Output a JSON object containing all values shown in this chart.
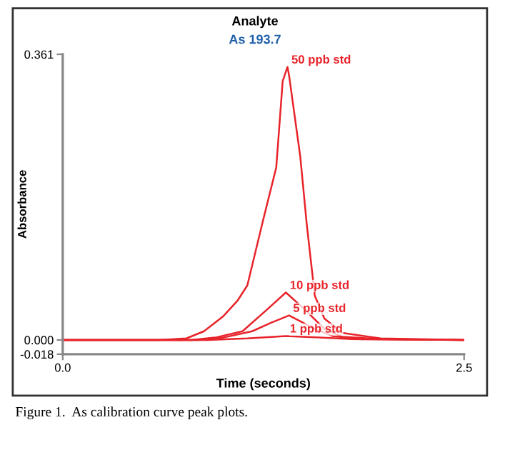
{
  "chart_data": {
    "type": "line",
    "title": "Analyte",
    "subtitle": "As 193.7",
    "xlabel": "Time (seconds)",
    "ylabel": "Absorbance",
    "xlim": [
      0,
      2.5
    ],
    "ylim": [
      -0.018,
      0.361
    ],
    "xticks": [
      {
        "value": 0,
        "label": "0.0"
      },
      2.5
    ],
    "yticks": [
      {
        "value": -0.018,
        "label": "-0.018"
      },
      {
        "value": 0,
        "label": "0.000"
      },
      0.361
    ],
    "grid": false,
    "legend": false,
    "marker": "none",
    "line_style": "solid",
    "annotations": [
      "Figure 1.  As calibration curve peak plots."
    ],
    "series": [
      {
        "name": "50 ppb std",
        "color": "#e8242b",
        "x": [
          0,
          0.6,
          0.77,
          0.88,
          1.0,
          1.09,
          1.15,
          1.25,
          1.33,
          1.37,
          1.4,
          1.41,
          1.48,
          1.52,
          1.57,
          1.63,
          1.74,
          1.98,
          2.5
        ],
        "values": [
          0,
          0,
          0.002,
          0.011,
          0.03,
          0.05,
          0.069,
          0.153,
          0.218,
          0.327,
          0.345,
          0.334,
          0.231,
          0.146,
          0.056,
          0.027,
          0.009,
          0.002,
          0
        ]
      },
      {
        "name": "10 ppb std",
        "color": "#e8242b",
        "x": [
          0,
          0.8,
          0.95,
          1.12,
          1.27,
          1.39,
          1.51,
          1.63,
          1.74,
          2.0,
          2.5
        ],
        "values": [
          0,
          0,
          0.003,
          0.011,
          0.038,
          0.06,
          0.038,
          0.014,
          0.004,
          0.001,
          0
        ]
      },
      {
        "name": "5 ppb std",
        "color": "#e8242b",
        "x": [
          0,
          0.85,
          1.0,
          1.18,
          1.3,
          1.41,
          1.57,
          1.68,
          1.85,
          2.5
        ],
        "values": [
          0,
          0,
          0.003,
          0.011,
          0.022,
          0.031,
          0.014,
          0.005,
          0.001,
          0
        ]
      },
      {
        "name": "1 ppb std",
        "color": "#e8242b",
        "x": [
          0,
          0.9,
          1.15,
          1.39,
          1.6,
          1.8,
          2.5
        ],
        "values": [
          0,
          0,
          0.002,
          0.005,
          0.003,
          0.001,
          0
        ]
      }
    ]
  }
}
